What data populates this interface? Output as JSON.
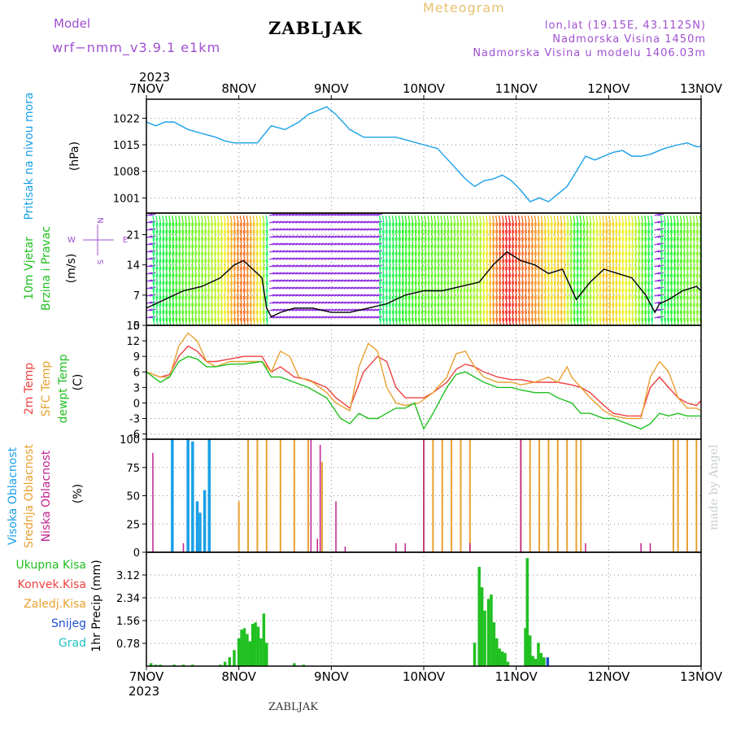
{
  "header": {
    "model_label": "Model",
    "model_name": "wrf−nmm_v3.9.1  e1km",
    "station": "ZABLJAK",
    "product": "Meteogram",
    "lonlat": "lon,lat (19.15E, 43.1125N)",
    "altitude": "Nadmorska Visina 1450m",
    "model_altitude": "Nadmorska Visina u modelu 1406.03m",
    "footer_station": "ZABLJAK",
    "credit": "made by Angel"
  },
  "colors": {
    "pressure": "#1aa0e8",
    "temp2m": "#f04040",
    "sfc": "#e8a030",
    "dew": "#20c020",
    "high": "#1aa0e8",
    "mid": "#e8a030",
    "low": "#c02090",
    "precip_total": "#20c020",
    "precip_snow": "#2050d0",
    "precip_grad": "#20c0c0",
    "purple": "#a050d0"
  },
  "chart_data": [
    {
      "type": "line",
      "title": "Pritisak na nivou mora",
      "ylabel": "(hPa)",
      "ylim": [
        997,
        1027
      ],
      "yticks": [
        1001,
        1008,
        1015,
        1022
      ],
      "x_tick_labels": [
        "7NOV",
        "8NOV",
        "9NOV",
        "10NOV",
        "11NOV",
        "12NOV",
        "13NOV"
      ],
      "year": "2023",
      "series": [
        {
          "color_key": "pressure",
          "x": [
            0,
            0.1,
            0.2,
            0.3,
            0.45,
            0.6,
            0.75,
            0.85,
            0.95,
            1.05,
            1.2,
            1.35,
            1.5,
            1.65,
            1.75,
            1.95,
            2.05,
            2.2,
            2.35,
            2.5,
            2.7,
            2.85,
            3.0,
            3.15,
            3.3,
            3.45,
            3.55,
            3.65,
            3.75,
            3.85,
            3.95,
            4.05,
            4.15,
            4.25,
            4.35,
            4.45,
            4.55,
            4.65,
            4.75,
            4.85,
            4.95,
            5.05,
            5.15,
            5.25,
            5.35,
            5.45,
            5.6,
            5.75,
            5.85,
            5.95,
            6.0
          ],
          "values": [
            1021,
            1020,
            1021,
            1021,
            1019,
            1018,
            1017,
            1016,
            1015.5,
            1015.5,
            1015.5,
            1020,
            1019,
            1021,
            1023,
            1025,
            1023,
            1019,
            1017,
            1017,
            1017,
            1016,
            1015,
            1014,
            1010,
            1006,
            1004,
            1005.5,
            1006,
            1007,
            1005.5,
            1003,
            1000,
            1001,
            1000,
            1002,
            1004,
            1008,
            1012,
            1011,
            1012,
            1013,
            1013.5,
            1012,
            1012,
            1012.5,
            1014,
            1015,
            1015.5,
            1014.5,
            1014.5
          ]
        }
      ]
    },
    {
      "type": "line",
      "title": "10m Vjetar Brzina i Pravac",
      "ylabel": "(m/s)",
      "ylim": [
        0,
        26
      ],
      "yticks": [
        0,
        7,
        14,
        21
      ],
      "compass": [
        "N",
        "E",
        "W",
        "S"
      ],
      "series": [
        {
          "name": "wind speed",
          "x": [
            0,
            0.2,
            0.4,
            0.6,
            0.8,
            0.95,
            1.05,
            1.25,
            1.3,
            1.35,
            1.45,
            1.6,
            1.8,
            2.0,
            2.2,
            2.4,
            2.6,
            2.8,
            3.0,
            3.2,
            3.4,
            3.6,
            3.75,
            3.9,
            4.05,
            4.2,
            4.35,
            4.5,
            4.65,
            4.8,
            4.95,
            5.1,
            5.25,
            5.4,
            5.5,
            5.55,
            5.65,
            5.8,
            5.95,
            6.0
          ],
          "values": [
            4,
            6,
            8,
            9,
            11,
            14,
            15,
            11,
            4,
            2,
            3,
            4,
            4,
            3,
            3,
            4,
            5,
            7,
            8,
            8,
            9,
            10,
            14,
            17,
            15,
            14,
            12,
            13,
            6,
            10,
            13,
            12,
            11,
            7,
            3,
            5,
            6,
            8,
            9,
            8
          ]
        }
      ]
    },
    {
      "type": "line",
      "title": "2m Temp / SFC Temp / dewpt Temp",
      "ylabel": "(C)",
      "ylim": [
        -7,
        15
      ],
      "yticks": [
        -6,
        -3,
        0,
        3,
        6,
        9,
        12,
        15
      ],
      "series": [
        {
          "name": "2m Temp",
          "color_key": "temp2m",
          "x": [
            0,
            0.15,
            0.25,
            0.35,
            0.45,
            0.55,
            0.65,
            0.75,
            0.9,
            1.05,
            1.25,
            1.35,
            1.45,
            1.6,
            1.75,
            1.95,
            2.05,
            2.2,
            2.35,
            2.5,
            2.6,
            2.7,
            2.8,
            2.9,
            3.0,
            3.1,
            3.25,
            3.35,
            3.45,
            3.55,
            3.65,
            3.8,
            3.95,
            4.05,
            4.2,
            4.35,
            4.45,
            4.6,
            4.7,
            4.8,
            4.95,
            5.05,
            5.2,
            5.35,
            5.45,
            5.55,
            5.65,
            5.75,
            5.85,
            5.95,
            6.0
          ],
          "values": [
            6,
            5,
            5.5,
            9,
            11,
            10,
            8,
            8,
            8.5,
            9,
            9,
            6,
            7,
            5,
            4.5,
            3,
            1,
            -1,
            6,
            9,
            8,
            3,
            1,
            1,
            1,
            2,
            4,
            6.5,
            7.5,
            7,
            6,
            5,
            4.5,
            4.5,
            4,
            4,
            4,
            3.5,
            3,
            2,
            -0.5,
            -2,
            -2.5,
            -2.5,
            3,
            5,
            3,
            1,
            0,
            -0.5,
            0.5
          ]
        },
        {
          "name": "SFC Temp",
          "color_key": "sfc",
          "x": [
            0,
            0.15,
            0.25,
            0.35,
            0.45,
            0.55,
            0.65,
            0.75,
            0.9,
            1.05,
            1.25,
            1.35,
            1.45,
            1.55,
            1.65,
            1.8,
            1.95,
            2.05,
            2.2,
            2.3,
            2.4,
            2.5,
            2.6,
            2.7,
            2.8,
            2.95,
            3.1,
            3.25,
            3.35,
            3.45,
            3.55,
            3.65,
            3.8,
            3.95,
            4.05,
            4.2,
            4.35,
            4.45,
            4.55,
            4.6,
            4.7,
            4.8,
            4.95,
            5.05,
            5.2,
            5.35,
            5.45,
            5.55,
            5.65,
            5.75,
            5.85,
            5.95,
            6.0
          ],
          "values": [
            6,
            5,
            5,
            11,
            13.5,
            12,
            8,
            7,
            8,
            8,
            8,
            6,
            10,
            9,
            5,
            4,
            2,
            0,
            -1.5,
            7,
            11.5,
            10,
            3,
            0,
            -0.5,
            0,
            2,
            5,
            9.5,
            10,
            7,
            5,
            4,
            4,
            3.5,
            4,
            5,
            4,
            7,
            5,
            3,
            1,
            -1.5,
            -2.5,
            -3,
            -3,
            5,
            8,
            6,
            1,
            -1,
            -1,
            -1.5
          ]
        },
        {
          "name": "dewpt Temp",
          "color_key": "dew",
          "x": [
            0,
            0.15,
            0.25,
            0.35,
            0.45,
            0.55,
            0.65,
            0.75,
            0.9,
            1.05,
            1.25,
            1.35,
            1.45,
            1.6,
            1.75,
            1.95,
            2.1,
            2.2,
            2.3,
            2.4,
            2.5,
            2.6,
            2.7,
            2.8,
            2.9,
            3.0,
            3.1,
            3.25,
            3.35,
            3.45,
            3.55,
            3.65,
            3.8,
            3.95,
            4.05,
            4.2,
            4.35,
            4.45,
            4.6,
            4.7,
            4.8,
            4.95,
            5.05,
            5.2,
            5.35,
            5.45,
            5.55,
            5.65,
            5.75,
            5.85,
            5.95,
            6.0
          ],
          "values": [
            6,
            4,
            5,
            8,
            9,
            8.5,
            7,
            7,
            7.5,
            7.5,
            8,
            5,
            5,
            4,
            3,
            1,
            -3,
            -4,
            -2,
            -3,
            -3,
            -2,
            -1,
            -1,
            0,
            -5,
            -2,
            3,
            5.5,
            6,
            5,
            4,
            3,
            3,
            2.5,
            2,
            2,
            1,
            0,
            -2,
            -2,
            -3,
            -3,
            -4,
            -5,
            -4,
            -2,
            -2.5,
            -2,
            -2.5,
            -2.5,
            -2.5
          ]
        }
      ]
    },
    {
      "type": "bar",
      "title": "Visoka / Srednja / Niska Oblacnost",
      "ylabel": "(%)",
      "ylim": [
        0,
        100
      ],
      "yticks": [
        0,
        25,
        50,
        75,
        100
      ],
      "series": [
        {
          "name": "Visoka Oblacnost",
          "color_key": "high",
          "x": [
            0.28,
            0.45,
            0.5,
            0.55,
            0.58,
            0.63,
            0.68
          ],
          "values": [
            100,
            100,
            98,
            45,
            35,
            55,
            100
          ]
        },
        {
          "name": "Srednja Oblacnost",
          "color_key": "mid",
          "x": [
            1.0,
            1.1,
            1.2,
            1.3,
            1.45,
            1.6,
            1.75,
            1.9,
            3.0,
            3.1,
            3.2,
            3.3,
            3.4,
            3.5,
            4.05,
            4.15,
            4.25,
            4.35,
            4.45,
            4.55,
            4.65,
            4.7,
            5.7,
            5.75,
            5.85,
            5.95
          ],
          "values": [
            45,
            100,
            100,
            100,
            100,
            100,
            100,
            80,
            100,
            100,
            100,
            100,
            100,
            100,
            100,
            100,
            100,
            100,
            100,
            100,
            100,
            100,
            100,
            100,
            100,
            100
          ]
        },
        {
          "name": "Niska Oblacnost",
          "color_key": "low",
          "x": [
            0.07,
            0.4,
            1.78,
            1.85,
            1.88,
            2.05,
            2.15,
            2.7,
            2.8,
            3.0,
            3.5,
            4.05,
            4.75,
            5.35,
            5.45
          ],
          "values": [
            88,
            8,
            100,
            12,
            95,
            45,
            5,
            8,
            8,
            100,
            8,
            100,
            8,
            8,
            8
          ]
        }
      ]
    },
    {
      "type": "bar",
      "title": "1hr Precip",
      "ylabel": "1hr Precip (mm)",
      "ylim": [
        0,
        3.9
      ],
      "yticks": [
        0.78,
        1.56,
        2.34,
        3.12
      ],
      "legend": [
        "Ukupna Kisa",
        "Konvek.Kisa",
        "Zaledj.Kisa",
        "Snijeg",
        "Grad"
      ],
      "series": [
        {
          "name": "Ukupna Kisa",
          "color_key": "precip_total",
          "x": [
            0.05,
            0.1,
            0.15,
            0.3,
            0.4,
            0.5,
            0.8,
            0.85,
            0.9,
            0.95,
            1.0,
            1.03,
            1.06,
            1.09,
            1.12,
            1.15,
            1.18,
            1.21,
            1.24,
            1.27,
            1.3,
            1.6,
            1.7,
            3.55,
            3.6,
            3.63,
            3.66,
            3.7,
            3.73,
            3.76,
            3.79,
            3.82,
            3.85,
            3.88,
            3.91,
            4.1,
            4.12,
            4.15,
            4.18,
            4.21,
            4.24,
            4.27,
            4.3
          ],
          "values": [
            0.1,
            0.05,
            0.05,
            0.05,
            0.05,
            0.05,
            0.05,
            0.15,
            0.3,
            0.55,
            0.95,
            1.25,
            1.3,
            1.1,
            0.85,
            1.45,
            1.5,
            1.35,
            0.95,
            1.8,
            0.8,
            0.1,
            0.05,
            0.8,
            3.4,
            2.7,
            1.9,
            2.3,
            2.45,
            1.5,
            0.95,
            0.6,
            0.5,
            0.45,
            0.15,
            1.3,
            3.7,
            1.05,
            0.35,
            0.25,
            0.8,
            0.45,
            0.3
          ]
        },
        {
          "name": "Snijeg",
          "color_key": "precip_snow",
          "x": [
            4.34
          ],
          "values": [
            0.3
          ]
        }
      ]
    }
  ]
}
